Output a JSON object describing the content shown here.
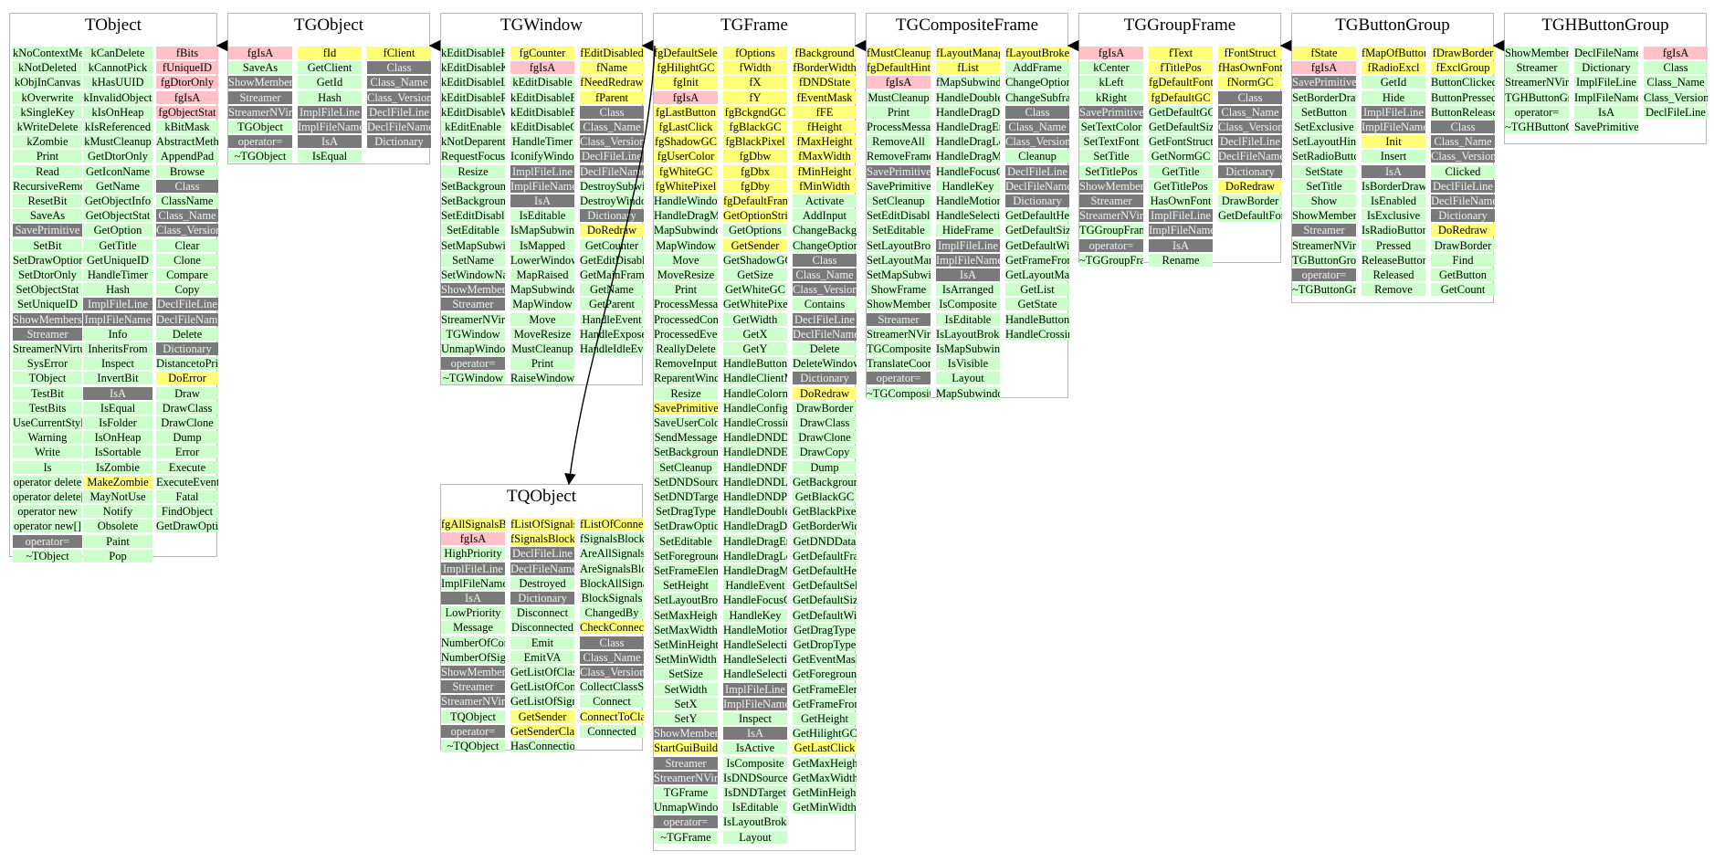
{
  "classes": [
    {
      "name": "TObject",
      "columns": [
        [
          "kNoContextMenu|p",
          "kNotDeleted|p",
          "kObjInCanvas|p",
          "kOverwrite|p",
          "kSingleKey|p",
          "kWriteDelete|p",
          "kZombie|p",
          "Print|p",
          "Read|p",
          "RecursiveRemove|p",
          "ResetBit|p",
          "SaveAs|p",
          "SavePrimitive|g",
          "SetBit|p",
          "SetDrawOption|p",
          "SetDtorOnly|p",
          "SetObjectStat|p",
          "SetUniqueID|p",
          "ShowMembers|g",
          "Streamer|g",
          "StreamerNVirtual|p",
          "SysError|p",
          "TObject|p",
          "TestBit|p",
          "TestBits|p",
          "UseCurrentStyle|p",
          "Warning|p",
          "Write|p",
          "Is|p",
          "operator delete|p",
          "operator delete[]|p",
          "operator new|p",
          "operator new[]|p",
          "operator=|g",
          "~TObject|p"
        ],
        [
          "kCanDelete|p",
          "kCannotPick|p",
          "kHasUUID|p",
          "kInvalidObject|p",
          "kIsOnHeap|p",
          "kIsReferenced|p",
          "kMustCleanup|p",
          "GetDtorOnly|p",
          "GetIconName|p",
          "GetName|p",
          "GetObjectInfo|p",
          "GetObjectStat|p",
          "GetOption|p",
          "GetTitle|p",
          "GetUniqueID|p",
          "HandleTimer|p",
          "Hash|p",
          "ImplFileLine|g",
          "ImplFileName|g",
          "Info|p",
          "InheritsFrom|p",
          "Inspect|p",
          "InvertBit|p",
          "IsA|g",
          "IsEqual|p",
          "IsFolder|p",
          "IsOnHeap|p",
          "IsSortable|p",
          "IsZombie|p",
          "MakeZombie|d",
          "MayNotUse|p",
          "Notify|p",
          "Obsolete|p",
          "Paint|p",
          "Pop|p"
        ],
        [
          "fBits|f",
          "fUniqueID|f",
          "fgDtorOnly|f",
          "fgIsA|f",
          "fgObjectStat|f",
          "kBitMask|p",
          "AbstractMethod|p",
          "AppendPad|p",
          "Browse|p",
          "Class|g",
          "ClassName|p",
          "Class_Name|g",
          "Class_Version|g",
          "Clear|p",
          "Clone|p",
          "Compare|p",
          "Copy|p",
          "DeclFileLine|g",
          "DeclFileName|g",
          "Delete|p",
          "Dictionary|g",
          "DistancetoPrimitive|p",
          "DoError|d",
          "Draw|p",
          "DrawClass|p",
          "DrawClone|p",
          "Dump|p",
          "Error|p",
          "Execute|p",
          "ExecuteEvent|p",
          "Fatal|p",
          "FindObject|p",
          "GetDrawOption|p"
        ]
      ]
    },
    {
      "name": "TGObject",
      "columns": [
        [
          "fgIsA|f",
          "SaveAs|p",
          "ShowMembers|g",
          "Streamer|g",
          "StreamerNVirtual|g",
          "TGObject|p",
          "operator=|g",
          "~TGObject|p"
        ],
        [
          "fId|d",
          "GetClient|p",
          "GetId|p",
          "Hash|p",
          "ImplFileLine|g",
          "ImplFileName|g",
          "IsA|g",
          "IsEqual|p"
        ],
        [
          "fClient|d",
          "Class|g",
          "Class_Name|g",
          "Class_Version|g",
          "DeclFileLine|g",
          "DeclFileName|g",
          "Dictionary|g"
        ]
      ]
    },
    {
      "name": "TGWindow",
      "columns": [
        [
          "kEditDisableHeight|p",
          "kEditDisableKeyEnable|p",
          "kEditDisableLayout|p",
          "kEditDisableResize|p",
          "kEditDisableWidth|p",
          "kEditEnable|p",
          "kNotDeparentWindow|p",
          "RequestFocus|p",
          "Resize|p",
          "SetBackgroundColor|p",
          "SetBackgroundPixmap|p",
          "SetEditDisabled|p",
          "SetEditable|p",
          "SetMapSubwindows|p",
          "SetName|p",
          "SetWindowName|p",
          "ShowMembers|g",
          "Streamer|g",
          "StreamerNVirtual|p",
          "TGWindow|p",
          "UnmapWindow|p",
          "operator=|g",
          "~TGWindow|p"
        ],
        [
          "fgCounter|d",
          "fgIsA|f",
          "kEditDisable|p",
          "kEditDisableBtnEnable|p",
          "kEditDisableEvents|p",
          "kEditDisableGrab|p",
          "HandleTimer|p",
          "IconifyWindow|p",
          "ImplFileLine|g",
          "ImplFileName|g",
          "IsA|g",
          "IsEditable|p",
          "IsMapSubwindows|p",
          "IsMapped|p",
          "LowerWindow|p",
          "MapRaised|p",
          "MapSubwindows|p",
          "MapWindow|p",
          "Move|p",
          "MoveResize|p",
          "MustCleanup|p",
          "Print|p",
          "RaiseWindow|p"
        ],
        [
          "fEditDisabled|d",
          "fName|d",
          "fNeedRedraw|d",
          "fParent|d",
          "Class|g",
          "Class_Name|g",
          "Class_Version|g",
          "DeclFileLine|g",
          "DeclFileName|g",
          "DestroySubwindows|p",
          "DestroyWindow|p",
          "Dictionary|g",
          "DoRedraw|d",
          "GetCounter|p",
          "GetEditDisabled|p",
          "GetMainFrame|p",
          "GetName|p",
          "GetParent|p",
          "HandleEvent|p",
          "HandleExpose|p",
          "HandleIdleEvent|p"
        ]
      ]
    },
    {
      "name": "TGFrame",
      "columns": [
        [
          "fgDefaultSelectedBackground|d",
          "fgHilightGC|d",
          "fgInit|d",
          "fgIsA|f",
          "fgLastButton|d",
          "fgLastClick|d",
          "fgShadowGC|d",
          "fgUserColor|d",
          "fgWhiteGC|d",
          "fgWhitePixel|d",
          "HandleWindowCallback|p",
          "HandleDragMotion|p",
          "MapSubwindows|p",
          "MapWindow|p",
          "Move|p",
          "MoveResize|p",
          "Print|p",
          "ProcessMessage|p",
          "ProcessedConfigure|p",
          "ProcessedEvent|p",
          "ReallyDelete|p",
          "RemoveInput|p",
          "ReparentWindow|p",
          "Resize|p",
          "SavePrimitive|d",
          "SaveUserColor|p",
          "SendMessage|p",
          "SetBackgroundColor|p",
          "SetCleanup|p",
          "SetDNDSource|p",
          "SetDNDTarget|p",
          "SetDragType|p",
          "SetDrawOption|p",
          "SetEditable|p",
          "SetForegroundColor|p",
          "SetFrameElement|p",
          "SetHeight|p",
          "SetLayoutBroken|p",
          "SetMaxHeight|p",
          "SetMaxWidth|p",
          "SetMinHeight|p",
          "SetMinWidth|p",
          "SetSize|p",
          "SetWidth|p",
          "SetX|p",
          "SetY|p",
          "ShowMembers|g",
          "StartGuiBuilding|d",
          "Streamer|g",
          "StreamerNVirtual|g",
          "TGFrame|p",
          "UnmapWindow|p",
          "operator=|g",
          "~TGFrame|p"
        ],
        [
          "fOptions|d",
          "fWidth|d",
          "fX|d",
          "fY|d",
          "fgBckgndGC|d",
          "fgBlackGC|d",
          "fgBlackPixel|d",
          "fgDbw|d",
          "fgDbx|d",
          "fgDby|d",
          "fgDefaultFrameBackground|d",
          "GetOptionString|d",
          "GetOptions|p",
          "GetSender|d",
          "GetShadowGC|p",
          "GetSize|p",
          "GetWhiteGC|p",
          "GetWhitePixel|p",
          "GetWidth|p",
          "GetX|p",
          "GetY|p",
          "HandleButton|p",
          "HandleClientMessage|p",
          "HandleColormapChange|p",
          "HandleConfigureNotify|p",
          "HandleCrossing|p",
          "HandleDNDDrop|p",
          "HandleDNDEnter|p",
          "HandleDNDFinished|p",
          "HandleDNDLeave|p",
          "HandleDNDPosition|p",
          "HandleDoubleClick|p",
          "HandleDragDrop|p",
          "HandleDragEnter|p",
          "HandleDragLeave|p",
          "HandleDragMotion|p",
          "HandleEvent|p",
          "HandleFocusChange|p",
          "HandleKey|p",
          "HandleMotion|p",
          "HandleSelection|p",
          "HandleSelectionClear|p",
          "HandleSelectionRequest|p",
          "ImplFileLine|g",
          "ImplFileName|g",
          "Inspect|p",
          "IsA|g",
          "IsActive|p",
          "IsComposite|p",
          "IsDNDSource|p",
          "IsDNDTarget|p",
          "IsEditable|p",
          "IsLayoutBroken|p",
          "Layout|p"
        ],
        [
          "fBackground|d",
          "fBorderWidth|d",
          "fDNDState|d",
          "fEventMask|d",
          "fFE|d",
          "fHeight|d",
          "fMaxHeight|d",
          "fMaxWidth|d",
          "fMinHeight|d",
          "fMinWidth|d",
          "Activate|p",
          "AddInput|p",
          "ChangeBackground|p",
          "ChangeOptions|p",
          "Class|g",
          "Class_Name|g",
          "Class_Version|g",
          "Contains|p",
          "DeclFileLine|g",
          "DeclFileName|g",
          "Delete|p",
          "DeleteWindow|p",
          "Dictionary|g",
          "DoRedraw|d",
          "DrawBorder|p",
          "DrawClass|p",
          "DrawClone|p",
          "DrawCopy|p",
          "Dump|p",
          "GetBackground|p",
          "GetBlackGC|p",
          "GetBlackPixel|p",
          "GetBorderWidth|p",
          "GetDNDData|p",
          "GetDefaultFrameBackground|p",
          "GetDefaultHeight|p",
          "GetDefaultSelectedBackground|p",
          "GetDefaultSize|p",
          "GetDefaultWidth|p",
          "GetDragType|p",
          "GetDropType|p",
          "GetEventMask|p",
          "GetForeground|p",
          "GetFrameElement|p",
          "GetFrameFromPoint|p",
          "GetHeight|p",
          "GetHilightGC|p",
          "GetLastClick|d",
          "GetMaxHeight|p",
          "GetMaxWidth|p",
          "GetMinHeight|p",
          "GetMinWidth|p"
        ]
      ]
    },
    {
      "name": "TGCompositeFrame",
      "columns": [
        [
          "fMustCleanup|d",
          "fgDefaultHints|d",
          "fgIsA|f",
          "MustCleanup|p",
          "Print|p",
          "ProcessMessage|p",
          "RemoveAll|p",
          "RemoveFrame|p",
          "SavePrimitive|g",
          "SavePrimitiveSubframes|p",
          "SetCleanup|p",
          "SetEditDisabled|p",
          "SetEditable|p",
          "SetLayoutBroken|p",
          "SetLayoutManager|p",
          "SetMapSubwindows|p",
          "ShowFrame|p",
          "ShowMembers|p",
          "Streamer|g",
          "StreamerNVirtual|p",
          "TGCompositeFrame|p",
          "TranslateCoordinates|p",
          "operator=|g",
          "~TGCompositeFrame|p"
        ],
        [
          "fLayoutManager|d",
          "fList|d",
          "fMapSubwindows|p",
          "HandleDoubleClick|p",
          "HandleDragDrop|p",
          "HandleDragEnter|p",
          "HandleDragLeave|p",
          "HandleDragMotion|p",
          "HandleFocusChange|p",
          "HandleKey|p",
          "HandleMotion|p",
          "HandleSelection|p",
          "HideFrame|p",
          "ImplFileLine|g",
          "ImplFileName|g",
          "IsA|g",
          "IsArranged|p",
          "IsComposite|p",
          "IsEditable|p",
          "IsLayoutBroken|p",
          "IsMapSubwindows|p",
          "IsVisible|p",
          "Layout|p",
          "MapSubwindows|p"
        ],
        [
          "fLayoutBroken|d",
          "AddFrame|p",
          "ChangeOptions|p",
          "ChangeSubframesBackground|p",
          "Class|g",
          "Class_Name|g",
          "Class_Version|g",
          "Cleanup|p",
          "DeclFileLine|g",
          "DeclFileName|g",
          "Dictionary|g",
          "GetDefaultHeight|p",
          "GetDefaultSize|p",
          "GetDefaultWidth|p",
          "GetFrameFromPoint|p",
          "GetLayoutManager|p",
          "GetList|p",
          "GetState|p",
          "HandleButton|p",
          "HandleCrossing|p"
        ]
      ]
    },
    {
      "name": "TGGroupFrame",
      "columns": [
        [
          "fgIsA|f",
          "kCenter|p",
          "kLeft|p",
          "kRight|p",
          "SavePrimitive|g",
          "SetTextColor|p",
          "SetTextFont|p",
          "SetTitle|p",
          "SetTitlePos|p",
          "ShowMembers|g",
          "Streamer|g",
          "StreamerNVirtual|g",
          "TGGroupFrame|p",
          "operator=|g",
          "~TGGroupFrame|p"
        ],
        [
          "fText|d",
          "fTitlePos|d",
          "fgDefaultFont|d",
          "fgDefaultGC|d",
          "GetDefaultGC|p",
          "GetDefaultSize|p",
          "GetFontStruct|p",
          "GetNormGC|p",
          "GetTitle|p",
          "GetTitlePos|p",
          "HasOwnFont|p",
          "ImplFileLine|g",
          "ImplFileName|g",
          "IsA|g",
          "Rename|p"
        ],
        [
          "fFontStruct|d",
          "fHasOwnFont|d",
          "fNormGC|d",
          "Class|g",
          "Class_Name|g",
          "Class_Version|g",
          "DeclFileLine|g",
          "DeclFileName|g",
          "Dictionary|g",
          "DoRedraw|d",
          "DrawBorder|p",
          "GetDefaultFontStruct|p"
        ]
      ]
    },
    {
      "name": "TGButtonGroup",
      "columns": [
        [
          "fState|d",
          "fgIsA|f",
          "SavePrimitive|g",
          "SetBorderDrawn|p",
          "SetButton|p",
          "SetExclusive|p",
          "SetLayoutHints|p",
          "SetRadioButtonExclusive|p",
          "SetState|p",
          "SetTitle|p",
          "Show|p",
          "ShowMembers|p",
          "Streamer|g",
          "StreamerNVirtual|p",
          "TGButtonGroup|p",
          "operator=|g",
          "~TGButtonGroup|p"
        ],
        [
          "fMapOfButtons|d",
          "fRadioExcl|d",
          "GetId|p",
          "Hide|p",
          "ImplFileLine|g",
          "ImplFileName|g",
          "Init|d",
          "Insert|p",
          "IsA|g",
          "IsBorderDrawn|p",
          "IsEnabled|p",
          "IsExclusive|p",
          "IsRadioButtonExclusive|p",
          "Pressed|p",
          "ReleaseButtons|p",
          "Released|p",
          "Remove|p"
        ],
        [
          "fDrawBorder|d",
          "fExclGroup|d",
          "ButtonClicked|p",
          "ButtonPressed|p",
          "ButtonReleased|p",
          "Class|g",
          "Class_Name|g",
          "Class_Version|g",
          "Clicked|p",
          "DeclFileLine|g",
          "DeclFileName|g",
          "Dictionary|g",
          "DoRedraw|d",
          "DrawBorder|p",
          "Find|p",
          "GetButton|p",
          "GetCount|p"
        ]
      ]
    },
    {
      "name": "TGHButtonGroup",
      "columns": [
        [
          "ShowMembers|p",
          "Streamer|p",
          "StreamerNVirtual|p",
          "TGHButtonGroup|p",
          "operator=|p",
          "~TGHButtonGroup|p"
        ],
        [
          "DeclFileName|p",
          "Dictionary|p",
          "ImplFileLine|p",
          "ImplFileName|p",
          "IsA|p",
          "SavePrimitive|p"
        ],
        [
          "fgIsA|f",
          "Class|p",
          "Class_Name|p",
          "Class_Version|p",
          "DeclFileLine|p"
        ]
      ]
    },
    {
      "name": "TQObject",
      "columns": [
        [
          "fgAllSignalsBlocked|d",
          "fgIsA|f",
          "HighPriority|p",
          "ImplFileLine|g",
          "ImplFileName|p",
          "IsA|g",
          "LowPriority|p",
          "Message|p",
          "NumberOfConnections|p",
          "NumberOfSignals|p",
          "ShowMembers|g",
          "Streamer|g",
          "StreamerNVirtual|g",
          "TQObject|p",
          "operator=|g",
          "~TQObject|p"
        ],
        [
          "fListOfSignals|d",
          "fSignalsBlocked|d",
          "DeclFileLine|g",
          "DeclFileName|g",
          "Destroyed|p",
          "Dictionary|g",
          "Disconnect|p",
          "Disconnected|p",
          "Emit|p",
          "EmitVA|p",
          "GetListOfClassSignals|p",
          "GetListOfConnections|p",
          "GetListOfSignals|p",
          "GetSender|d",
          "GetSenderClassName|d",
          "HasConnection|p"
        ],
        [
          "fListOfConnections|d",
          "fSignalsBlocked|p",
          "AreAllSignalsBlocked|p",
          "AreSignalsBlocked|p",
          "BlockAllSignals|p",
          "BlockSignals|p",
          "ChangedBy|p",
          "CheckConnectArgs|d",
          "Class|g",
          "Class_Name|g",
          "Class_Version|g",
          "CollectClassSignalLists|p",
          "Connect|p",
          "ConnectToClass|d",
          "Connected|p"
        ]
      ]
    }
  ],
  "inheritance": [
    {
      "from": "TGObject",
      "to": "TObject"
    },
    {
      "from": "TGWindow",
      "to": "TGObject"
    },
    {
      "from": "TGFrame",
      "to": "TGWindow"
    },
    {
      "from": "TGFrame",
      "to": "TQObject"
    },
    {
      "from": "TGCompositeFrame",
      "to": "TGFrame"
    },
    {
      "from": "TGGroupFrame",
      "to": "TGCompositeFrame"
    },
    {
      "from": "TGButtonGroup",
      "to": "TGGroupFrame"
    },
    {
      "from": "TGHButtonGroup",
      "to": "TGButtonGroup"
    }
  ],
  "colors": {
    "public_method": "#ccffcc",
    "data_member": "#ffff77",
    "static_field": "#ffc0c8",
    "generated": "#7a7a7a",
    "box_border": "#b8b8b8",
    "arrow": "#000000"
  }
}
